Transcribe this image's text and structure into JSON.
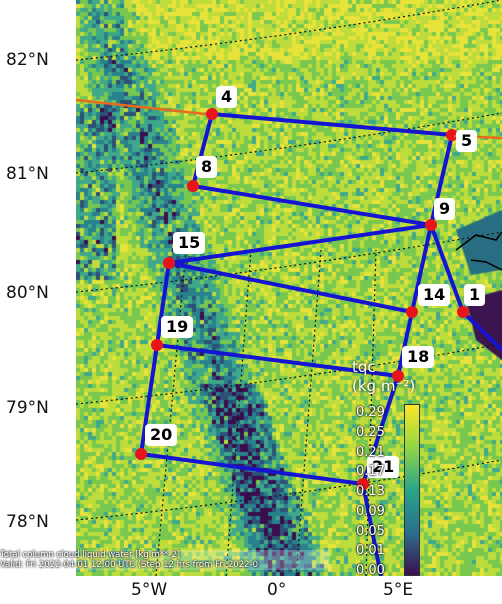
{
  "map": {
    "latitude_labels": [
      "82°N",
      "81°N",
      "80°N",
      "79°N",
      "78°N"
    ],
    "longitude_labels": [
      "5°W",
      "0°",
      "5°E"
    ],
    "footer_lines": [
      "Total column cloud liquid water [kg m**-2]",
      "Valid: Fri 2022-04-01 12:00 UTC (Step 12 hrs from Fri 2022-0"
    ],
    "colorbar": {
      "title": "tqc\n(kg m⁻²)",
      "title_line1": "tqc",
      "title_line2": "(kg m⁻²)",
      "ticks": [
        "0.29",
        "0.25",
        "0.21",
        "0.17",
        "0.13",
        "0.09",
        "0.05",
        "0.01",
        "0.00"
      ]
    },
    "colors": {
      "flight_track": "#1414d2",
      "waypoint": "#e8141c",
      "orange_line": "#e86a1c",
      "field_high": "#e8e33a",
      "field_mid": "#3fa88a",
      "field_low": "#3a0d4d"
    },
    "waypoints": [
      {
        "id": "4",
        "label": "4"
      },
      {
        "id": "5",
        "label": "5"
      },
      {
        "id": "8",
        "label": "8"
      },
      {
        "id": "9",
        "label": "9"
      },
      {
        "id": "15",
        "label": "15"
      },
      {
        "id": "14",
        "label": "14"
      },
      {
        "id": "1",
        "label": "1"
      },
      {
        "id": "19",
        "label": "19"
      },
      {
        "id": "18",
        "label": "18"
      },
      {
        "id": "20",
        "label": "20"
      },
      {
        "id": "21",
        "label": "21"
      }
    ]
  }
}
